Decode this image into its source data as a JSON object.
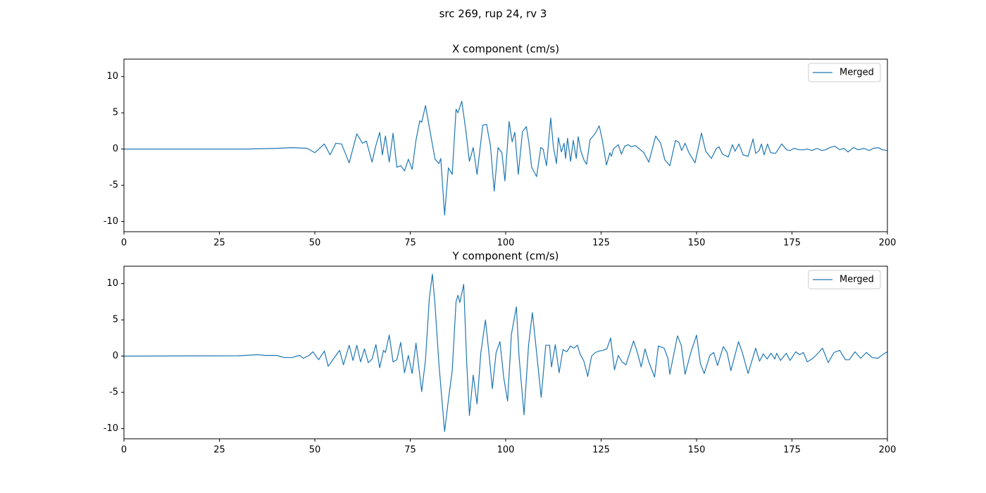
{
  "title": "src 269, rup 24, rv 3",
  "chart_data": [
    {
      "type": "line",
      "title": "X component (cm/s)",
      "legend": "upper right",
      "x": [
        0,
        32,
        40,
        44,
        48,
        50,
        52.5,
        54,
        55.5,
        57,
        59,
        61,
        62.5,
        63.5,
        65,
        66,
        67,
        67.7,
        68.5,
        69.5,
        70.5,
        71.5,
        72.5,
        73.5,
        74.5,
        75.5,
        76.5,
        77.5,
        78,
        79,
        80,
        81.5,
        82.5,
        83,
        84,
        85,
        86,
        87,
        87.5,
        88.5,
        89.5,
        90.5,
        91.5,
        92.5,
        94,
        95,
        96,
        97,
        98,
        99,
        99.8,
        100.9,
        101.7,
        102.4,
        103.3,
        104.4,
        105.4,
        106.1,
        106.8,
        108.1,
        109.2,
        109.8,
        110.7,
        111.8,
        112.5,
        113.3,
        113.8,
        114.6,
        115.3,
        115.7,
        116.2,
        117,
        117.7,
        118.5,
        119,
        119.7,
        120.5,
        121.2,
        122.1,
        123.4,
        124.5,
        125.3,
        126.4,
        127.3,
        127.7,
        128.2,
        129.5,
        130.3,
        131.2,
        132.1,
        133,
        133.9,
        135.1,
        136.2,
        137.5,
        139.3,
        140.6,
        141.7,
        143,
        144.5,
        145.4,
        146.1,
        147,
        148,
        149.6,
        151.3,
        152.4,
        153.9,
        155.2,
        155.9,
        156.8,
        158.3,
        159.4,
        160.1,
        161.1,
        162.2,
        163.5,
        164.8,
        165.5,
        166.4,
        167,
        167.7,
        168.6,
        169.4,
        170.7,
        172.3,
        173.6,
        174.5,
        175.5,
        176.9,
        178,
        179,
        180.3,
        181.5,
        182.8,
        183.8,
        184.9,
        186.2,
        187.5,
        188.6,
        189.7,
        191.1,
        192.4,
        193.9,
        195.2,
        196.3,
        197.6,
        198.7,
        200
      ],
      "series": [
        {
          "name": "Merged",
          "color": "#1f77b4",
          "values": [
            0,
            0,
            0.1,
            0.2,
            0.1,
            -0.5,
            0.7,
            -0.8,
            0.8,
            0.7,
            -1.9,
            2.1,
            0.8,
            1.1,
            -1.8,
            0.5,
            2.3,
            -0.8,
            1.8,
            -1.8,
            2.2,
            -2.5,
            -2.3,
            -3.0,
            -1.4,
            -2.8,
            1.2,
            3.9,
            3.7,
            6.0,
            3.0,
            -1.4,
            -2.0,
            -1.3,
            -9.1,
            -2.6,
            -3.5,
            5.5,
            5.0,
            6.6,
            2.8,
            -1.7,
            0.2,
            -3.5,
            3.3,
            3.4,
            0.5,
            -5.8,
            0.2,
            -0.5,
            -4.4,
            3.8,
            1.0,
            2.3,
            -3.5,
            2.4,
            3.1,
            0.8,
            -2.5,
            -3.8,
            0.2,
            0.0,
            -2.3,
            4.3,
            0.3,
            -2.0,
            1.6,
            -0.4,
            0.8,
            -1.3,
            1.5,
            -1.7,
            1.2,
            -1.3,
            1.7,
            -0.3,
            -1.5,
            -2.1,
            1.3,
            2.1,
            3.2,
            1.3,
            -2.2,
            -0.5,
            -1.0,
            0.0,
            0.6,
            -0.7,
            0.4,
            0.6,
            0.3,
            0.5,
            0.0,
            -0.5,
            -1.8,
            1.8,
            0.8,
            -1.5,
            -2.3,
            1.2,
            0.9,
            -0.2,
            0.8,
            -0.5,
            -1.9,
            2.2,
            -0.3,
            -1.3,
            0.1,
            0.3,
            -0.7,
            -1.1,
            0.6,
            -0.3,
            0.7,
            -0.8,
            -1.0,
            1.4,
            -0.6,
            -0.2,
            0.7,
            -0.8,
            0.7,
            -0.5,
            -0.6,
            0.7,
            -0.1,
            -0.2,
            0.1,
            -0.1,
            -0.1,
            0.0,
            -0.2,
            0.1,
            -0.2,
            -0.1,
            0.2,
            0.4,
            -0.1,
            0.1,
            -0.4,
            0.2,
            -0.1,
            0.1,
            -0.2,
            0.1,
            0.2,
            -0.1,
            -0.2
          ]
        }
      ],
      "xlim": [
        0,
        200
      ],
      "ylim": [
        -11.4,
        12.4
      ],
      "xticks": [
        0,
        25,
        50,
        75,
        100,
        125,
        150,
        175,
        200
      ],
      "yticks": [
        -10,
        -5,
        0,
        5,
        10
      ]
    },
    {
      "type": "line",
      "title": "Y component (cm/s)",
      "legend": "upper right",
      "x": [
        0,
        30,
        35,
        37,
        40,
        42,
        44,
        46,
        47,
        48.5,
        49.5,
        51,
        52.5,
        53.5,
        55,
        56.5,
        57.5,
        59,
        60,
        61,
        62,
        63,
        64,
        65,
        66,
        67,
        68,
        68.5,
        69.5,
        70.5,
        71.5,
        72.5,
        73.5,
        74.5,
        75.5,
        76.5,
        78,
        79,
        80,
        80.8,
        81.5,
        82.5,
        84,
        85,
        86,
        87,
        87.5,
        88,
        89,
        89.8,
        90.5,
        91.5,
        92.5,
        93.5,
        94.7,
        95.7,
        96.5,
        97.5,
        98.5,
        99.5,
        100.5,
        101.5,
        102.8,
        103.5,
        104.8,
        106,
        107,
        108,
        109.3,
        110.5,
        111.5,
        112,
        113,
        114,
        115,
        116,
        117,
        117.8,
        118.8,
        119.5,
        120.5,
        121.5,
        122.5,
        123.5,
        124.5,
        125.5,
        126.5,
        127.5,
        128.5,
        129.5,
        130.5,
        131.5,
        133.5,
        134.5,
        135.5,
        136.5,
        137.5,
        139,
        140,
        141.5,
        142.5,
        143,
        145,
        146,
        147,
        148.5,
        150,
        151,
        152,
        153.5,
        154.5,
        155.5,
        157,
        158,
        159,
        161,
        162,
        163.5,
        165.5,
        166.5,
        167.5,
        168.5,
        169.5,
        170.5,
        171,
        172,
        173.5,
        174.5,
        176,
        177,
        178,
        179,
        180.5,
        182,
        183,
        184.5,
        186,
        187.5,
        189,
        190,
        191.5,
        193,
        194.5,
        196,
        197.5,
        199,
        200
      ],
      "series": [
        {
          "name": "Merged",
          "color": "#1f77b4",
          "values": [
            0,
            0.05,
            0.2,
            0.1,
            0.1,
            -0.2,
            -0.2,
            0.1,
            -0.3,
            0.1,
            0.6,
            -0.5,
            0.7,
            -1.4,
            -0.3,
            0.8,
            -1.2,
            1.5,
            -0.6,
            1.5,
            -0.8,
            1.0,
            -0.9,
            -0.4,
            1.6,
            -1.6,
            0.8,
            0.5,
            2.9,
            -0.8,
            -0.5,
            1.9,
            -2.3,
            0.1,
            -2.4,
            1.8,
            -4.9,
            -0.5,
            8,
            11.3,
            7,
            -1,
            -10.4,
            -6,
            -2,
            7.5,
            8.4,
            7.4,
            9.9,
            -1,
            -8.2,
            -2.6,
            -6.6,
            0.5,
            5.0,
            0,
            -4.5,
            0.5,
            2.0,
            -3,
            -6.2,
            3,
            6.8,
            0,
            -8.1,
            1.5,
            6.0,
            1,
            -5.7,
            1.5,
            1.5,
            -1.5,
            1.6,
            -2.3,
            0.9,
            0.6,
            1.4,
            1.1,
            1.5,
            0.3,
            -0.7,
            -2.8,
            0,
            0.5,
            0.7,
            0.8,
            1,
            2.5,
            -1.9,
            0.1,
            -0.8,
            -1.2,
            2.1,
            0.5,
            -1.5,
            1.0,
            -0.8,
            -2.9,
            1.4,
            1.1,
            -0.3,
            -2.5,
            2.8,
            1.5,
            -2.5,
            0.5,
            2.9,
            -1,
            -2.4,
            0.1,
            0.5,
            -1.3,
            1.3,
            0.5,
            -2,
            2.0,
            0.5,
            -2.4,
            1.1,
            -0.7,
            0.3,
            -0.4,
            0.4,
            -0.4,
            0.4,
            -0.6,
            0.4,
            -0.6,
            0.6,
            0.2,
            0.5,
            -0.8,
            -0.3,
            0.5,
            1.1,
            -0.9,
            0.5,
            0.8,
            -0.5,
            -0.5,
            0.6,
            -0.3,
            0.5,
            -0.2,
            -0.3,
            0.3,
            0.6
          ]
        }
      ],
      "xlim": [
        0,
        200
      ],
      "ylim": [
        -11.4,
        12.4
      ],
      "xticks": [
        0,
        25,
        50,
        75,
        100,
        125,
        150,
        175,
        200
      ],
      "yticks": [
        -10,
        -5,
        0,
        5,
        10
      ]
    }
  ]
}
